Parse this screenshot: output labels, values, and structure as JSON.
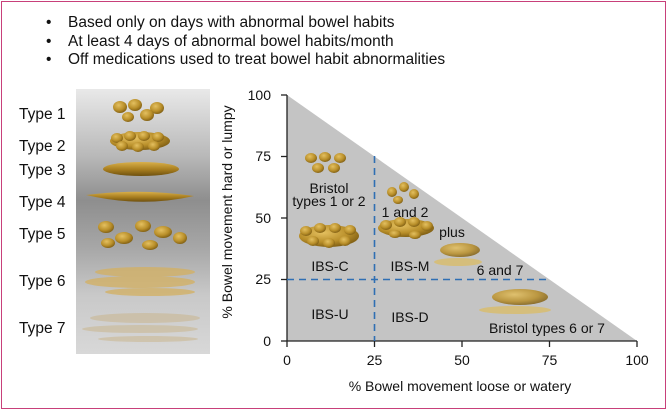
{
  "bullets": [
    "Based only on days with abnormal bowel habits",
    "At least 4 days of abnormal bowel habits/month",
    "Off medications used to treat bowel habit abnormalities"
  ],
  "bullet_glyph": "•",
  "stool_types": [
    "Type 1",
    "Type 2",
    "Type 3",
    "Type 4",
    "Type 5",
    "Type 6",
    "Type 7"
  ],
  "chart_data": {
    "type": "diagram",
    "xlabel": "% Bowel movement loose or watery",
    "ylabel": "% Bowel movement hard or lumpy",
    "xticks": [
      "0",
      "25",
      "50",
      "75",
      "100"
    ],
    "yticks": [
      "0",
      "25",
      "50",
      "75",
      "100"
    ],
    "xlim": [
      0,
      100
    ],
    "ylim": [
      0,
      100
    ],
    "threshold_lines": [
      25,
      25
    ],
    "regions": [
      "IBS-C",
      "IBS-M",
      "IBS-U",
      "IBS-D"
    ],
    "annotations": {
      "bristol_1_2": [
        "Bristol",
        "types 1 or 2"
      ],
      "m_1_2": "1 and 2",
      "m_plus": "plus",
      "m_6_7": "6 and 7",
      "bristol_6_7": "Bristol types 6 or 7"
    },
    "colors": {
      "triangle": "#c4c4c4",
      "dash": "#2f6fb3",
      "stool": "#b98f2a"
    }
  }
}
